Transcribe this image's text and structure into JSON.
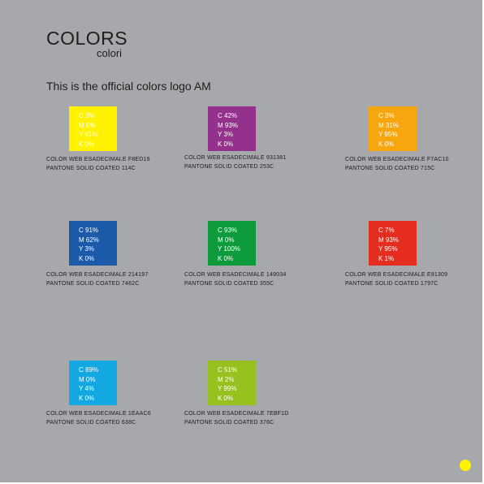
{
  "header": {
    "title": "COLORS",
    "subtitle": "colori",
    "intro": "This is the official colors logo AM"
  },
  "swatches": [
    {
      "fill": "#fff200",
      "c": "C 3%",
      "m": "M 6%",
      "y": "Y 91%",
      "k": "K 0%",
      "web": "COLOR WEB ESADECIMALE F8ED19",
      "pantone": "PANTONE SOLID COATED 114C"
    },
    {
      "fill": "#93318c",
      "c": "C 42%",
      "m": "M 93%",
      "y": "Y 3%",
      "k": "K 0%",
      "web": "COLOR WEB ESADECIMALE 931381",
      "pantone": "PANTONE SOLID COATED 253C"
    },
    {
      "fill": "#f7a70d",
      "c": "C 3%",
      "m": "M 31%",
      "y": "Y 95%",
      "k": "K 0%",
      "web": "COLOR WEB ESADECIMALE F7AC10",
      "pantone": "PANTONE SOLID COATED 715C"
    },
    {
      "fill": "#1a5aa8",
      "c": "C 91%",
      "m": "M 62%",
      "y": "Y 3%",
      "k": "K 0%",
      "web": "COLOR WEB ESADECIMALE 214197",
      "pantone": "PANTONE SOLID COATED 7462C"
    },
    {
      "fill": "#0e9b3b",
      "c": "C 93%",
      "m": "M 0%",
      "y": "Y 100%",
      "k": "K 0%",
      "web": "COLOR WEB ESADECIMALE 149034",
      "pantone": "PANTONE SOLID COATED 355C"
    },
    {
      "fill": "#e42c1f",
      "c": "C 7%",
      "m": "M 93%",
      "y": "Y 95%",
      "k": "K 1%",
      "web": "COLOR WEB ESADECIMALE E91309",
      "pantone": "PANTONE SOLID COATED 1797C"
    },
    {
      "fill": "#14a8e2",
      "c": "C 89%",
      "m": "M 0%",
      "y": "Y 4%",
      "k": "K 0%",
      "web": "COLOR WEB ESADECIMALE 1EAAC6",
      "pantone": "PANTONE SOLID COATED 638C"
    },
    {
      "fill": "#97c11e",
      "c": "C 51%",
      "m": "M 2%",
      "y": "Y 99%",
      "k": "K 0%",
      "web": "COLOR WEB ESADECIMALE 7EBF1D",
      "pantone": "PANTONE SOLID COATED 376C"
    }
  ],
  "decor": {
    "dot_color": "#fff200"
  }
}
